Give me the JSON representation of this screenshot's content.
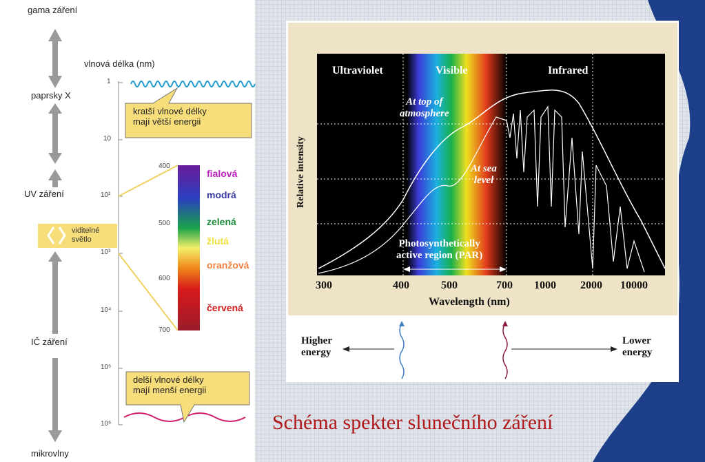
{
  "left": {
    "bands": [
      "gama záření",
      "paprsky X",
      "UV záření",
      "viditelné\nsvětlo",
      "IČ záření",
      "mikrovlny"
    ],
    "axis_title": "vlnová délka (nm)",
    "scale_labels": [
      "1",
      "10",
      "10²",
      "10³",
      "10⁴",
      "10⁵",
      "10⁶"
    ],
    "callout_short": "kratší vlnové délky\nmají větší energii",
    "callout_long": "delší vlnové délky\nmají menší energii",
    "visible_scale": [
      "400",
      "500",
      "600",
      "700"
    ],
    "colors": [
      "fialová",
      "modrá",
      "zelená",
      "žlutá",
      "oranžová",
      "červená"
    ]
  },
  "right": {
    "regions": [
      "Ultraviolet",
      "Visible",
      "Infrared"
    ],
    "y_label": "Relative intensity",
    "x_label": "Wavelength (nm)",
    "x_ticks": [
      "300",
      "400",
      "500",
      "700",
      "1000",
      "2000",
      "10000"
    ],
    "curve_labels": [
      "At top of\natmosphere",
      "At sea\nlevel"
    ],
    "par": "Photosynthetically\nactive region (PAR)",
    "higher": "Higher\nenergy",
    "lower": "Lower\nenergy"
  },
  "caption": "Schéma spekter slunečního záření"
}
